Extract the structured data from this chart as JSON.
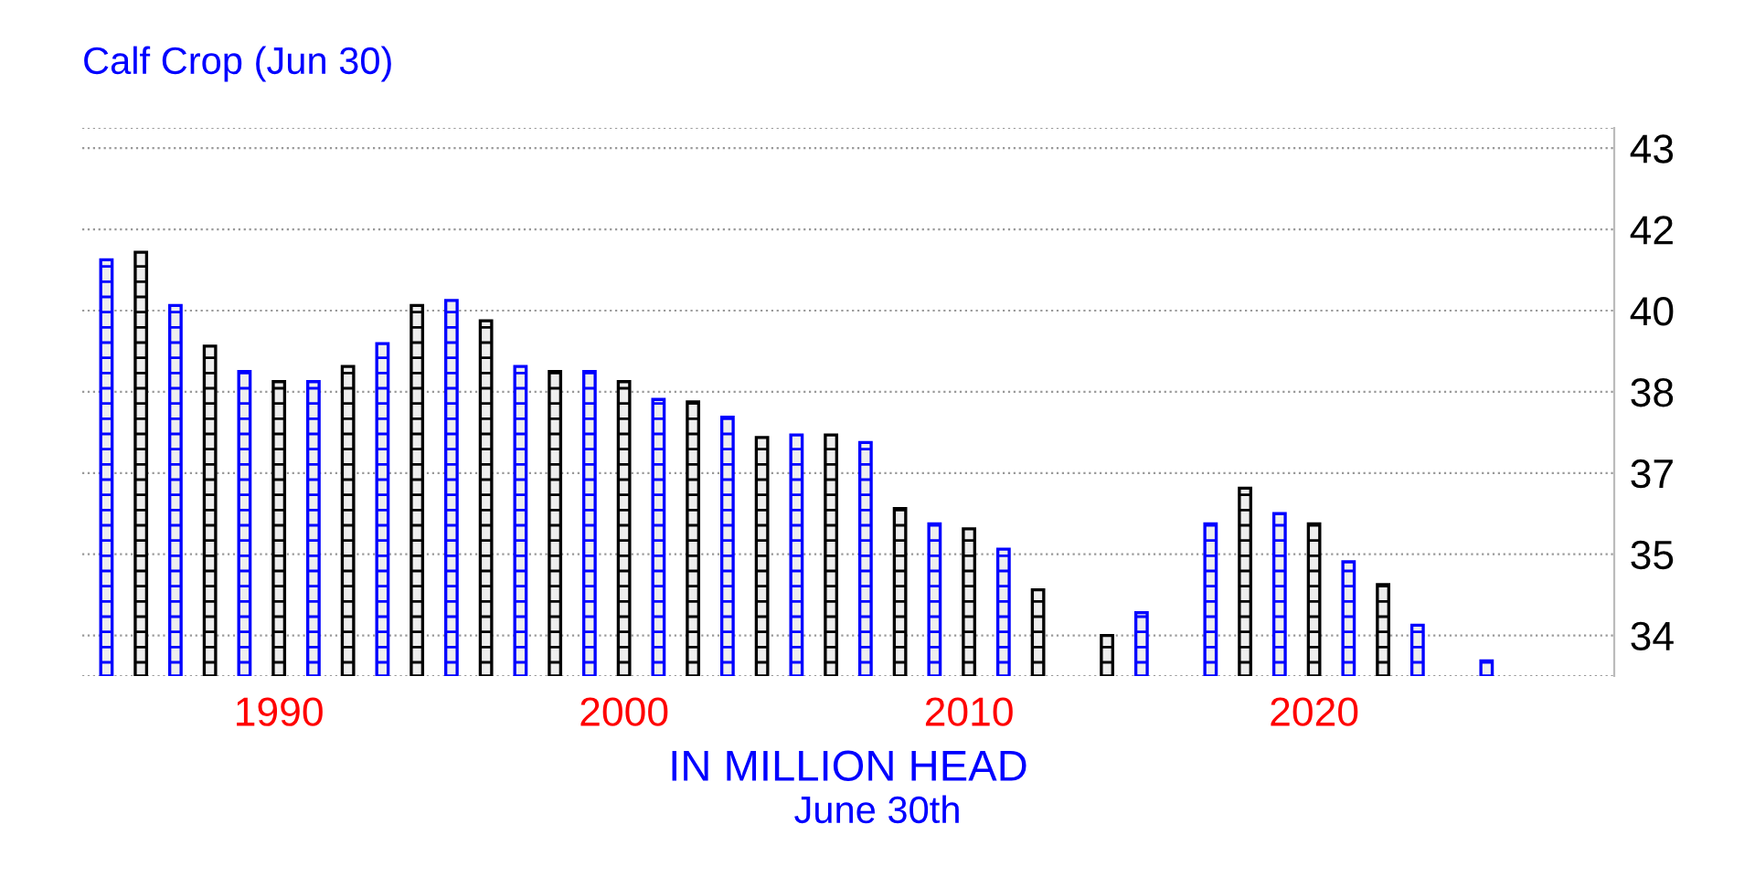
{
  "chart_data": {
    "type": "bar",
    "title": "Calf Crop (Jun 30)",
    "xlabel": "IN MILLION HEAD",
    "annotations": [
      "June 30th"
    ],
    "x": [
      1985,
      1986,
      1987,
      1988,
      1989,
      1990,
      1991,
      1992,
      1993,
      1994,
      1995,
      1996,
      1997,
      1998,
      1999,
      2000,
      2001,
      2002,
      2003,
      2004,
      2005,
      2006,
      2007,
      2008,
      2009,
      2010,
      2011,
      2012,
      2013,
      2014,
      2015,
      2016,
      2017,
      2018,
      2019,
      2020,
      2021,
      2022,
      2023,
      2024,
      2025
    ],
    "values": [
      41.0,
      41.15,
      40.1,
      39.3,
      38.8,
      38.6,
      38.6,
      38.9,
      39.35,
      40.1,
      40.2,
      39.8,
      38.9,
      38.8,
      38.8,
      38.6,
      38.25,
      38.2,
      37.9,
      37.5,
      37.55,
      37.55,
      37.4,
      36.1,
      35.8,
      35.7,
      35.3,
      34.5,
      null,
      33.6,
      34.05,
      null,
      35.8,
      36.5,
      36.0,
      35.8,
      35.05,
      34.6,
      33.8,
      null,
      33.1
    ],
    "colors": [
      "#0000ff",
      "#000000",
      "#0000ff",
      "#000000",
      "#0000ff",
      "#000000",
      "#0000ff",
      "#000000",
      "#0000ff",
      "#000000",
      "#0000ff",
      "#000000",
      "#0000ff",
      "#000000",
      "#0000ff",
      "#000000",
      "#0000ff",
      "#000000",
      "#0000ff",
      "#000000",
      "#0000ff",
      "#000000",
      "#0000ff",
      "#000000",
      "#0000ff",
      "#000000",
      "#0000ff",
      "#000000",
      "#0000ff",
      "#000000",
      "#0000ff",
      "#000000",
      "#0000ff",
      "#000000",
      "#0000ff",
      "#000000",
      "#0000ff",
      "#000000",
      "#0000ff",
      "#000000",
      "#0000ff"
    ],
    "xlim": [
      1984.3,
      2028.7
    ],
    "xticks": [
      1990,
      2000,
      2010,
      2020
    ],
    "ylim": [
      32.8,
      43.6
    ],
    "yticks": [
      {
        "value": 33.6,
        "label": "34"
      },
      {
        "value": 35.2,
        "label": "35"
      },
      {
        "value": 36.8,
        "label": "37"
      },
      {
        "value": 38.4,
        "label": "38"
      },
      {
        "value": 40.0,
        "label": "40"
      },
      {
        "value": 41.6,
        "label": "42"
      },
      {
        "value": 43.2,
        "label": "43"
      }
    ],
    "grid": "y",
    "legend": false
  }
}
